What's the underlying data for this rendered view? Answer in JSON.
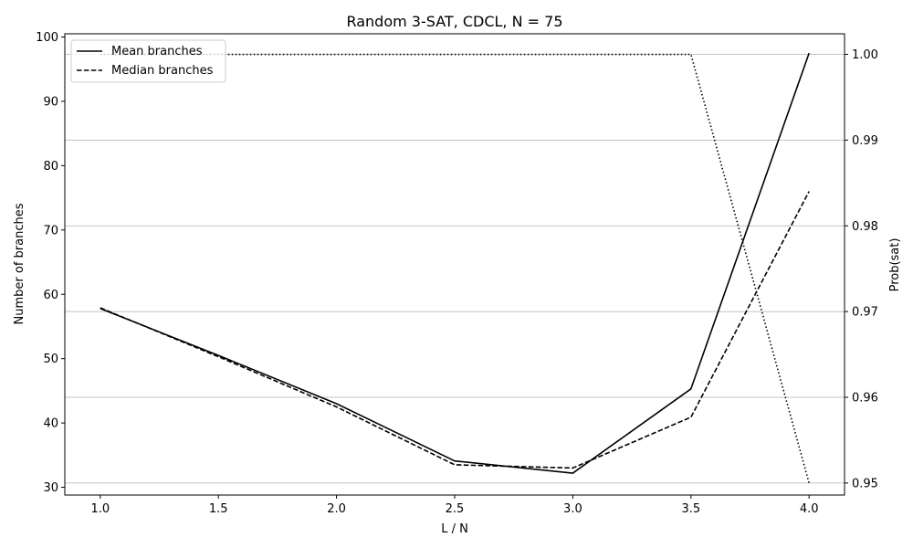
{
  "chart_data": {
    "type": "line",
    "title": "Random 3-SAT, CDCL, N = 75",
    "xlabel": "L / N",
    "ylabel": "Number of branches",
    "y2label": "Prob(sat)",
    "x": [
      1.0,
      1.5,
      2.0,
      2.5,
      3.0,
      3.5,
      4.0
    ],
    "xlim": [
      0.85,
      4.15
    ],
    "ylim": [
      28.8,
      100.5
    ],
    "y2lim": [
      0.9486,
      1.0024
    ],
    "xticks": [
      "1.0",
      "1.5",
      "2.0",
      "2.5",
      "3.0",
      "3.5",
      "4.0"
    ],
    "yticks": [
      "30",
      "40",
      "50",
      "60",
      "70",
      "80",
      "90",
      "100"
    ],
    "y2ticks": [
      "0.95",
      "0.96",
      "0.97",
      "0.98",
      "0.99",
      "1.00"
    ],
    "grid": "right-axis horizontal",
    "legend_position": "top-left",
    "series": [
      {
        "name": "Mean branches",
        "axis": "left",
        "style": "solid",
        "values": [
          57.8,
          50.5,
          43.0,
          34.1,
          32.2,
          45.3,
          97.5
        ]
      },
      {
        "name": "Median branches",
        "axis": "left",
        "style": "dashed",
        "values": [
          57.9,
          50.3,
          42.5,
          33.5,
          33.0,
          40.9,
          76.0
        ]
      },
      {
        "name": "Prob(sat)",
        "axis": "right",
        "style": "dotted",
        "values": [
          1.0,
          1.0,
          1.0,
          1.0,
          1.0,
          1.0,
          0.95
        ]
      }
    ]
  }
}
